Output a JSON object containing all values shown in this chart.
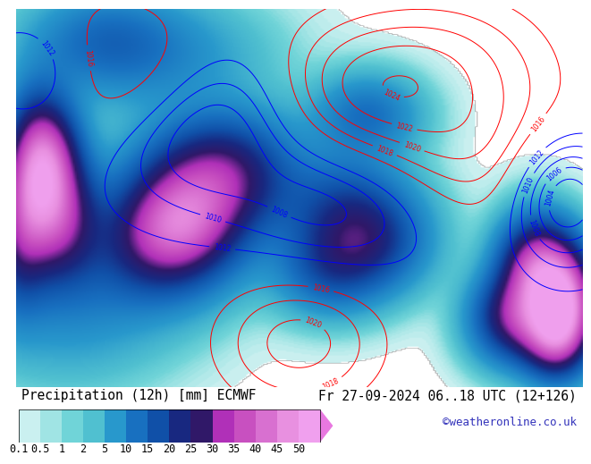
{
  "title_left": "Precipitation (12h) [mm] ECMWF",
  "title_right": "Fr 27-09-2024 06..18 UTC (12+126)",
  "watermark": "©weatheronline.co.uk",
  "colorbar_levels": [
    0.1,
    0.5,
    1,
    2,
    5,
    10,
    15,
    20,
    25,
    30,
    35,
    40,
    45,
    50
  ],
  "colorbar_colors": [
    "#caf0f0",
    "#a0e4e4",
    "#70d4d8",
    "#50c0d0",
    "#2898cc",
    "#1870c0",
    "#1050a8",
    "#182880",
    "#301868",
    "#b030b8",
    "#c850c0",
    "#d870d0",
    "#e890e0",
    "#f0a0ee"
  ],
  "triangle_color": "#e878e0",
  "bg_color": "#ffffff",
  "map_bg": "#c8e0a0",
  "title_fontsize": 10.5,
  "tick_fontsize": 8.5,
  "watermark_color": "#3333bb",
  "watermark_fontsize": 9
}
